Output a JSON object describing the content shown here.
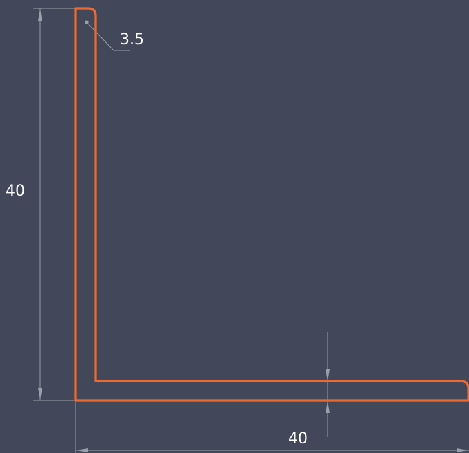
{
  "drawing": {
    "background_color": "#424859",
    "profile_color": "#ee6a30",
    "dimension_line_color": "#9aa0a8",
    "text_color": "#ffffff"
  },
  "dimensions": {
    "height_label": "40",
    "width_label": "40",
    "radius_label": "3.5"
  }
}
